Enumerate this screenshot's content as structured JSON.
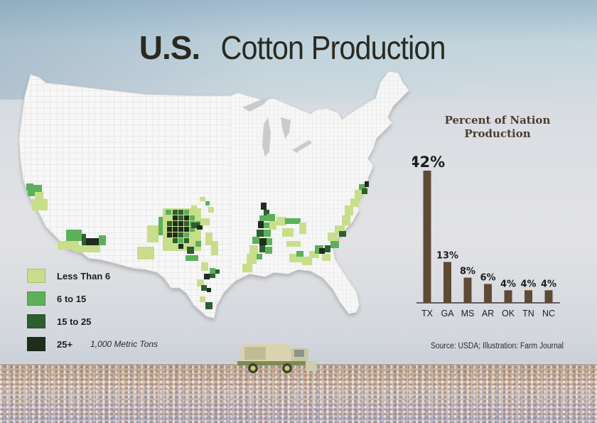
{
  "title": {
    "bold": "U.S.",
    "light": "Cotton Production"
  },
  "legend": {
    "items": [
      {
        "label": "Less Than 6",
        "color": "#c8de8a"
      },
      {
        "label": "6 to 15",
        "color": "#5cb05a"
      },
      {
        "label": "15 to 25",
        "color": "#2e5e2e"
      },
      {
        "label": "25+",
        "color": "#1d2e1d"
      }
    ],
    "unit": "1,000 Metric Tons"
  },
  "source": "Source: USDA; Illustration: Farm Journal",
  "chart_data": {
    "type": "bar",
    "title": "Percent of Nation Production",
    "categories": [
      "TX",
      "GA",
      "MS",
      "AR",
      "OK",
      "TN",
      "NC"
    ],
    "values": [
      42,
      13,
      8,
      6,
      4,
      4,
      4
    ],
    "value_labels": [
      "42%",
      "13%",
      "8%",
      "6%",
      "4%",
      "4%",
      "4%"
    ],
    "xlabel": "",
    "ylabel": "",
    "ylim": [
      0,
      42
    ],
    "grid": false,
    "bar_color": "#5e4a35"
  }
}
